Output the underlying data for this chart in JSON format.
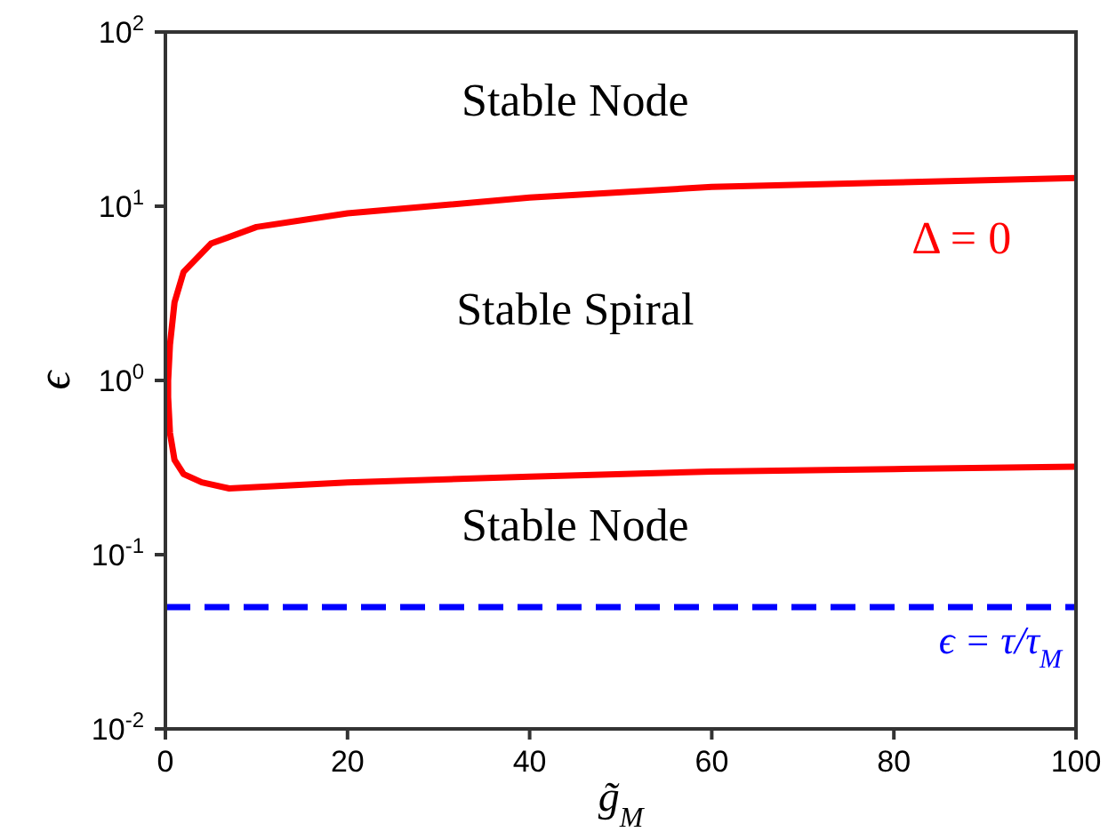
{
  "chart_data": {
    "type": "line",
    "xlabel": "g̃$_{M}$",
    "ylabel": "ϵ",
    "log": "y",
    "xlim": [
      0,
      100
    ],
    "xticks": [
      0,
      20,
      40,
      60,
      80,
      100
    ],
    "ylim": [
      0.01,
      100
    ],
    "yticks": [
      {
        "value": 0.01,
        "label": "10$^{-2}$"
      },
      {
        "value": 0.1,
        "label": "10$^{-1}$"
      },
      {
        "value": 1,
        "label": "10$^{0}$"
      },
      {
        "value": 10,
        "label": "10$^{1}$"
      },
      {
        "value": 100,
        "label": "10$^{2}$"
      }
    ],
    "marker": "none",
    "line_style": "solid",
    "series": [
      {
        "name": "Δ = 0",
        "color": "#ff0000",
        "x": [
          100,
          80,
          60,
          40,
          20,
          10,
          5,
          2,
          1,
          0.5,
          0.3,
          0.3,
          0.5,
          1,
          2,
          4,
          7,
          20,
          40,
          60,
          80,
          100
        ],
        "values": [
          14.5,
          13.7,
          12.9,
          11.2,
          9.1,
          7.6,
          6.1,
          4.2,
          2.8,
          1.6,
          1.0,
          0.8,
          0.5,
          0.35,
          0.29,
          0.26,
          0.24,
          0.26,
          0.28,
          0.3,
          0.31,
          0.32
        ]
      }
    ],
    "ref_lines": [
      {
        "axis": "y",
        "value": 0.05,
        "label": "ϵ = τ/τ$_{M}$",
        "color": "#0000ff",
        "line_style": "dashed"
      }
    ],
    "annotations": [
      "Stable Node",
      "Stable Spiral",
      "Stable Node"
    ]
  }
}
